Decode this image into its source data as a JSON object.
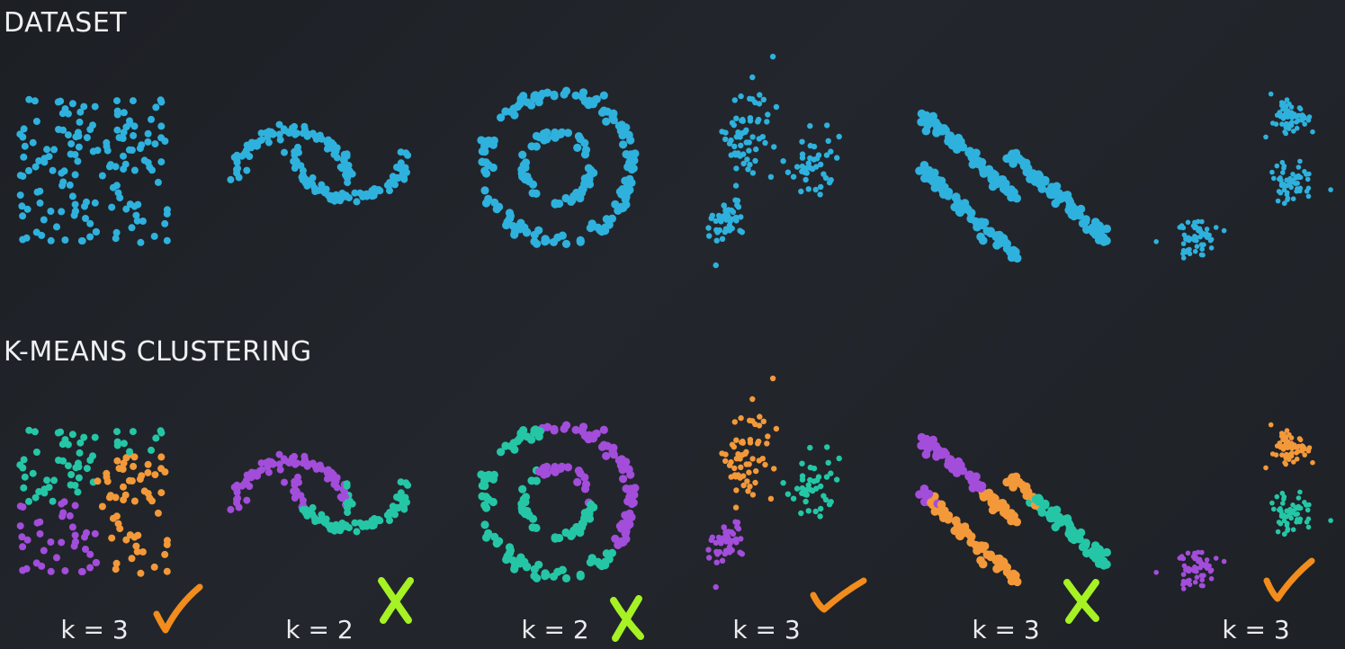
{
  "sections": {
    "dataset_title": "DATASET",
    "kmeans_title": "K-MEANS CLUSTERING"
  },
  "colors": {
    "raw": "#2fb1dd",
    "purple": "#a34ddb",
    "teal": "#25c6a6",
    "orange": "#f3993a",
    "check": "#f28c1c",
    "cross": "#a6f224"
  },
  "datasets": [
    {
      "shape": "uniform-square",
      "k_label": "k = 3",
      "verdict": "check",
      "verdict_icon": "orange-checkmark-icon"
    },
    {
      "shape": "two-moons",
      "k_label": "k = 2",
      "verdict": "cross",
      "verdict_icon": "green-x-icon"
    },
    {
      "shape": "concentric-rings",
      "k_label": "k = 2",
      "verdict": "cross",
      "verdict_icon": "green-x-icon"
    },
    {
      "shape": "uneven-blobs",
      "k_label": "k = 3",
      "verdict": "check",
      "verdict_icon": "orange-checkmark-icon"
    },
    {
      "shape": "diagonal-bands",
      "k_label": "k = 3",
      "verdict": "cross",
      "verdict_icon": "green-x-icon"
    },
    {
      "shape": "three-blobs",
      "k_label": "k = 3",
      "verdict": "check",
      "verdict_icon": "orange-checkmark-icon"
    }
  ]
}
